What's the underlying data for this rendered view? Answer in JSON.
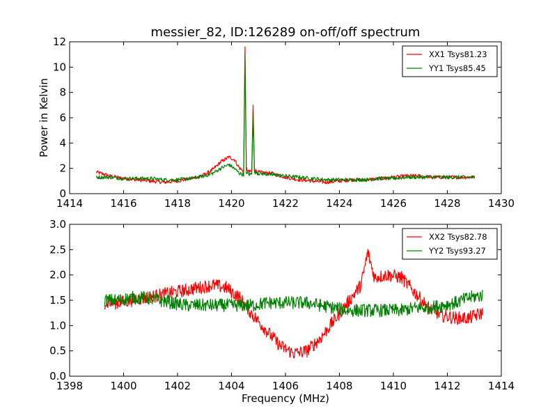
{
  "chart_data": [
    {
      "type": "line",
      "title": "messier_82, ID:126289 on-off/off spectrum",
      "xlabel": "",
      "ylabel": "Power in Kelvin",
      "xlim": [
        1414,
        1430
      ],
      "ylim": [
        0,
        12
      ],
      "xticks": [
        "1414",
        "1416",
        "1418",
        "1420",
        "1422",
        "1424",
        "1426",
        "1428",
        "1430"
      ],
      "yticks": [
        "0",
        "2",
        "4",
        "6",
        "8",
        "10",
        "12"
      ],
      "grid": false,
      "legend": "top-right",
      "series": [
        {
          "name": "XX1 Tsys81.23",
          "color": "#ff0000",
          "x": [
            1415.0,
            1415.5,
            1416.0,
            1416.5,
            1417.0,
            1417.5,
            1418.0,
            1418.5,
            1419.0,
            1419.3,
            1419.6,
            1419.9,
            1420.1,
            1420.3,
            1420.45,
            1420.5,
            1420.55,
            1420.65,
            1420.75,
            1420.8,
            1420.85,
            1421.0,
            1421.5,
            1422.0,
            1422.5,
            1423.0,
            1423.5,
            1424.0,
            1424.5,
            1425.0,
            1425.5,
            1426.0,
            1426.5,
            1427.0,
            1427.5,
            1428.0,
            1428.5,
            1429.0
          ],
          "y": [
            1.7,
            1.4,
            1.2,
            1.1,
            1.0,
            0.9,
            1.0,
            1.2,
            1.5,
            1.9,
            2.5,
            2.9,
            2.7,
            2.0,
            1.8,
            11.6,
            2.0,
            1.7,
            1.8,
            7.0,
            1.9,
            1.7,
            1.6,
            1.3,
            1.1,
            1.0,
            0.9,
            1.0,
            1.1,
            1.1,
            1.2,
            1.3,
            1.4,
            1.4,
            1.3,
            1.3,
            1.3,
            1.3
          ]
        },
        {
          "name": "YY1 Tsys85.45",
          "color": "#008000",
          "x": [
            1415.0,
            1415.5,
            1416.0,
            1416.5,
            1417.0,
            1417.5,
            1418.0,
            1418.5,
            1419.0,
            1419.3,
            1419.6,
            1419.9,
            1420.1,
            1420.3,
            1420.45,
            1420.5,
            1420.55,
            1420.65,
            1420.75,
            1420.8,
            1420.85,
            1421.0,
            1421.5,
            1422.0,
            1422.5,
            1423.0,
            1423.5,
            1424.0,
            1424.5,
            1425.0,
            1425.5,
            1426.0,
            1426.5,
            1427.0,
            1427.5,
            1428.0,
            1428.5,
            1429.0
          ],
          "y": [
            1.3,
            1.3,
            1.2,
            1.2,
            1.2,
            1.1,
            1.1,
            1.2,
            1.4,
            1.6,
            2.0,
            2.3,
            2.0,
            1.6,
            1.5,
            11.0,
            1.7,
            1.5,
            1.6,
            6.5,
            1.7,
            1.6,
            1.5,
            1.4,
            1.3,
            1.2,
            1.1,
            1.1,
            1.1,
            1.1,
            1.2,
            1.2,
            1.3,
            1.3,
            1.3,
            1.3,
            1.3,
            1.3
          ]
        }
      ]
    },
    {
      "type": "line",
      "title": "",
      "xlabel": "Frequency (MHz)",
      "ylabel": "",
      "xlim": [
        1398,
        1414
      ],
      "ylim": [
        0,
        3
      ],
      "xticks": [
        "1398",
        "1400",
        "1402",
        "1404",
        "1406",
        "1408",
        "1410",
        "1412",
        "1414"
      ],
      "yticks": [
        "0.0",
        "0.5",
        "1.0",
        "1.5",
        "2.0",
        "2.5",
        "3.0"
      ],
      "grid": false,
      "legend": "top-right",
      "series": [
        {
          "name": "XX2 Tsys82.78",
          "color": "#ff0000",
          "x": [
            1399.3,
            1399.8,
            1400.3,
            1400.8,
            1401.3,
            1401.8,
            1402.3,
            1402.8,
            1403.3,
            1403.8,
            1404.3,
            1404.8,
            1405.3,
            1405.8,
            1406.3,
            1406.8,
            1407.3,
            1407.8,
            1408.3,
            1408.8,
            1409.05,
            1409.3,
            1409.8,
            1410.3,
            1410.8,
            1411.3,
            1411.8,
            1412.3,
            1412.8,
            1413.3
          ],
          "y": [
            1.45,
            1.45,
            1.5,
            1.55,
            1.6,
            1.65,
            1.7,
            1.75,
            1.8,
            1.75,
            1.55,
            1.2,
            0.9,
            0.6,
            0.45,
            0.5,
            0.75,
            1.1,
            1.45,
            1.8,
            2.45,
            1.95,
            2.0,
            1.95,
            1.65,
            1.35,
            1.2,
            1.15,
            1.15,
            1.25
          ]
        },
        {
          "name": "YY2 Tsys93.27",
          "color": "#008000",
          "x": [
            1399.3,
            1399.8,
            1400.3,
            1400.8,
            1401.3,
            1401.8,
            1402.3,
            1402.8,
            1403.3,
            1403.8,
            1404.3,
            1404.8,
            1405.3,
            1405.8,
            1406.3,
            1406.8,
            1407.3,
            1407.8,
            1408.3,
            1408.8,
            1409.3,
            1409.8,
            1410.3,
            1410.8,
            1411.3,
            1411.8,
            1412.3,
            1412.8,
            1413.3
          ],
          "y": [
            1.5,
            1.5,
            1.55,
            1.55,
            1.5,
            1.45,
            1.4,
            1.4,
            1.4,
            1.4,
            1.4,
            1.4,
            1.45,
            1.45,
            1.45,
            1.45,
            1.4,
            1.35,
            1.3,
            1.3,
            1.3,
            1.3,
            1.3,
            1.35,
            1.35,
            1.4,
            1.45,
            1.55,
            1.6
          ]
        }
      ]
    }
  ]
}
